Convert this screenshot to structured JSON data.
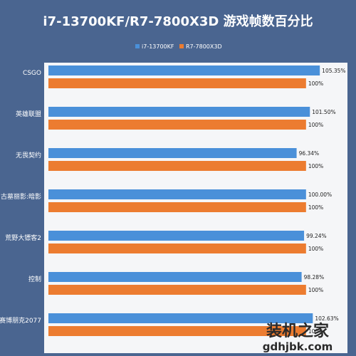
{
  "chart_data": {
    "type": "bar",
    "orientation": "horizontal",
    "title": "i7-13700KF/R7-7800X3D 游戏帧数百分比",
    "categories": [
      "CSGO",
      "英雄联盟",
      "无畏契约",
      "古墓丽影:暗影",
      "荒野大镖客2",
      "控制",
      "赛博朋克2077"
    ],
    "series": [
      {
        "name": "i7-13700KF",
        "color": "#4a90d9",
        "values": [
          105.35,
          101.5,
          96.34,
          100.0,
          99.24,
          98.28,
          102.63
        ],
        "labels": [
          "105.35%",
          "101.50%",
          "96.34%",
          "100.00%",
          "99.24%",
          "98.28%",
          "102.63%"
        ]
      },
      {
        "name": "R7-7800X3D",
        "color": "#ec7c30",
        "values": [
          100,
          100,
          100,
          100,
          100,
          100,
          100
        ],
        "labels": [
          "100%",
          "100%",
          "100%",
          "100%",
          "100%",
          "100%",
          "100%"
        ]
      }
    ],
    "xlim": [
      0,
      110
    ],
    "grid": false,
    "legend_position": "top-center"
  },
  "watermark": {
    "main": "装机之家",
    "url": "gdhjbk.com"
  },
  "colors": {
    "background": "#4a6590",
    "plot_background": "#f5f6f8",
    "text_light": "#ffffff",
    "text_dark": "#222222"
  }
}
